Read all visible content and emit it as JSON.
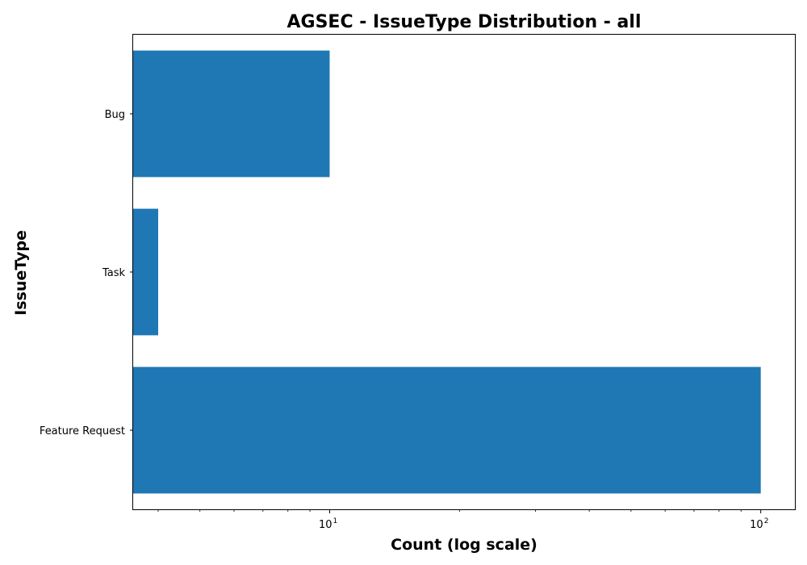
{
  "chart_data": {
    "type": "bar",
    "orientation": "horizontal",
    "title": "AGSEC - IssueType Distribution - all",
    "xlabel": "Count (log scale)",
    "ylabel": "IssueType",
    "x_scale": "log",
    "xlim": [
      3.5,
      120
    ],
    "categories": [
      "Bug",
      "Task",
      "Feature Request"
    ],
    "values": [
      10,
      4,
      100
    ],
    "bar_color": "#1f77b4",
    "x_major_ticks": [
      {
        "value": 10,
        "base": "10",
        "exponent": "1"
      },
      {
        "value": 100,
        "base": "10",
        "exponent": "2"
      }
    ],
    "x_minor_ticks": [
      4,
      5,
      6,
      7,
      8,
      9,
      20,
      30,
      40,
      50,
      60,
      70,
      80,
      90
    ],
    "grid": false,
    "legend": "none"
  }
}
